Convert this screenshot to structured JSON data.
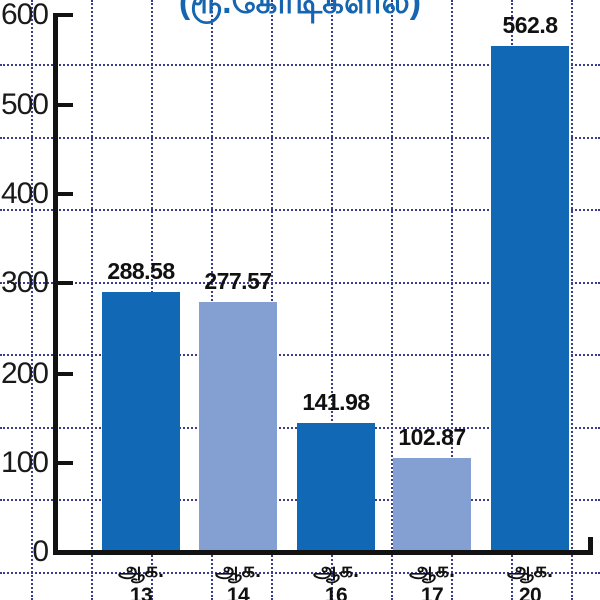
{
  "title": {
    "text": "(ரூ.கோடிகளில்)"
  },
  "colors": {
    "bar_dark": "#1169b5",
    "bar_light": "#84a0d2",
    "grid": "#3b3e8c",
    "axis": "#121212",
    "title_blue": "#1565b0",
    "value_label": "#111111"
  },
  "y_axis": {
    "tick_labels": [
      "600",
      "500",
      "400",
      "300",
      "200",
      "100",
      "0"
    ]
  },
  "bars": [
    {
      "value_label": "288.58",
      "month_label": "ஆக.",
      "day_label": "13",
      "shade": "dark"
    },
    {
      "value_label": "277.57",
      "month_label": "ஆக.",
      "day_label": "14",
      "shade": "light"
    },
    {
      "value_label": "141.98",
      "month_label": "ஆக.",
      "day_label": "16",
      "shade": "dark"
    },
    {
      "value_label": "102.87",
      "month_label": "ஆக.",
      "day_label": "17",
      "shade": "light"
    },
    {
      "value_label": "562.8",
      "month_label": "ஆக.",
      "day_label": "20",
      "shade": "dark"
    }
  ],
  "chart_data": {
    "type": "bar",
    "categories": [
      "ஆக. 13",
      "ஆக. 14",
      "ஆக. 16",
      "ஆக. 17",
      "ஆக. 20"
    ],
    "values": [
      288.58,
      277.57,
      141.98,
      102.87,
      562.8
    ],
    "title": "(ரூ.கோடிகளில்)",
    "xlabel": "",
    "ylabel": "",
    "ylim": [
      0,
      600
    ],
    "y_ticks": [
      0,
      100,
      200,
      300,
      400,
      500,
      600
    ],
    "grid": "dotted background grid, navy, horizontal and vertical",
    "legend": "none",
    "bar_colors": [
      "#1169b5",
      "#84a0d2",
      "#1169b5",
      "#84a0d2",
      "#1169b5"
    ]
  }
}
